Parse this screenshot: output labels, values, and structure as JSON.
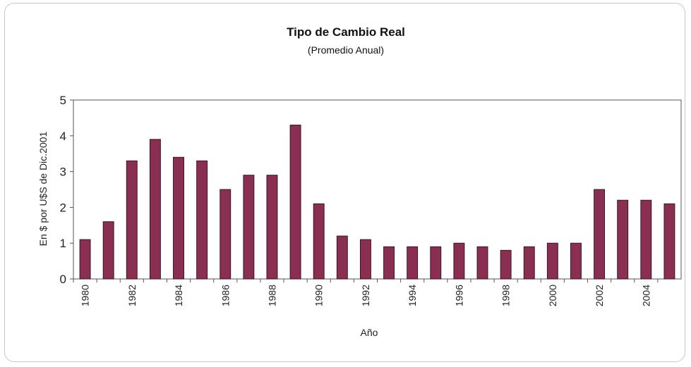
{
  "chart_data": {
    "type": "bar",
    "title": "Tipo de Cambio Real",
    "subtitle": "(Promedio Anual)",
    "xlabel": "Año",
    "ylabel": "En $ por U$S de Dic.2001",
    "categories": [
      "1980",
      "1981",
      "1982",
      "1983",
      "1984",
      "1985",
      "1986",
      "1987",
      "1988",
      "1989",
      "1990",
      "1991",
      "1992",
      "1993",
      "1994",
      "1995",
      "1996",
      "1997",
      "1998",
      "1999",
      "2000",
      "2001",
      "2002",
      "2003",
      "2004",
      "2005"
    ],
    "x_tick_labels": [
      "1980",
      "",
      "1982",
      "",
      "1984",
      "",
      "1986",
      "",
      "1988",
      "",
      "1990",
      "",
      "1992",
      "",
      "1994",
      "",
      "1996",
      "",
      "1998",
      "",
      "2000",
      "",
      "2002",
      "",
      "2004",
      ""
    ],
    "values": [
      1.1,
      1.6,
      3.3,
      3.9,
      3.4,
      3.3,
      2.5,
      2.9,
      2.9,
      4.3,
      2.1,
      1.2,
      1.1,
      0.9,
      0.9,
      0.9,
      1.0,
      0.9,
      0.8,
      0.9,
      1.0,
      1.0,
      2.5,
      2.2,
      2.2,
      2.1
    ],
    "ylim": [
      0,
      5
    ],
    "y_ticks": [
      "0",
      "1",
      "2",
      "3",
      "4",
      "5"
    ],
    "bar_color": "#8b2f52",
    "grid": false,
    "legend": "none"
  }
}
